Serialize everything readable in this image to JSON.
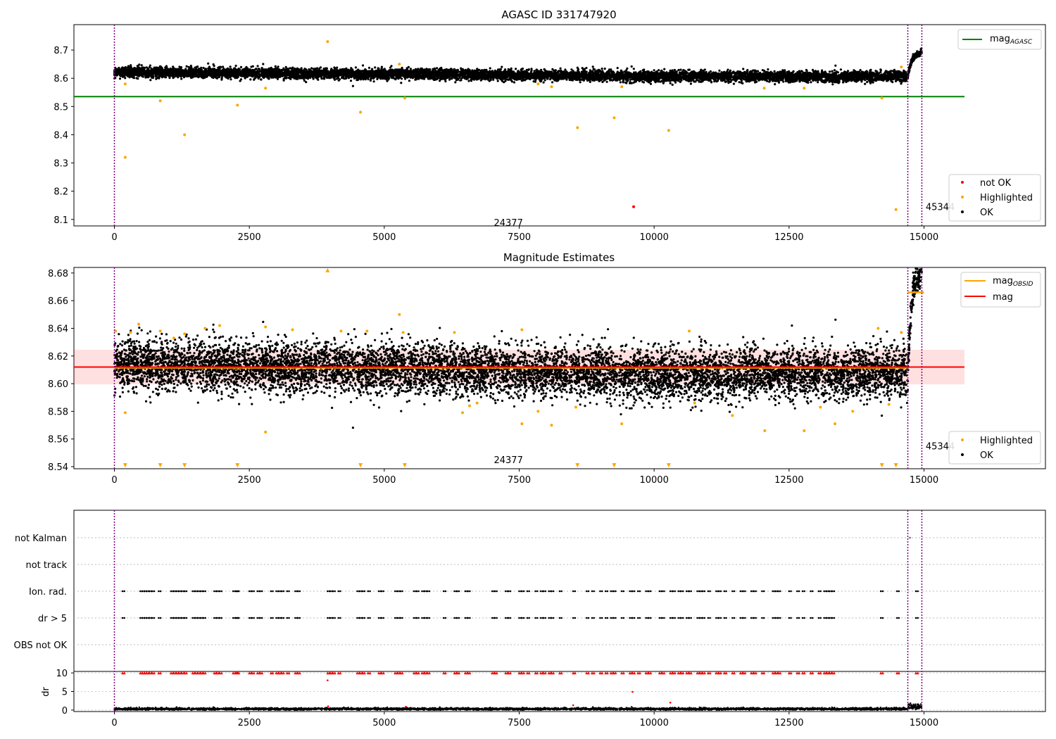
{
  "chart_data": [
    {
      "type": "scatter",
      "title": "AGASC ID 331747920",
      "xlim": [
        -750,
        17250
      ],
      "ylim": [
        8.077,
        8.79
      ],
      "xticks": [
        0,
        2500,
        5000,
        7500,
        10000,
        12500,
        15000
      ],
      "yticks": [
        8.1,
        8.2,
        8.3,
        8.4,
        8.5,
        8.6,
        8.7
      ],
      "reference_lines": [
        {
          "name": "mag_AGASC",
          "label_base": "mag",
          "label_sub": "AGASC",
          "y": 8.535,
          "x_range": [
            -750,
            15750
          ],
          "color": "#008000"
        }
      ],
      "obsid_boundaries": [
        0,
        14700,
        14960
      ],
      "annotations": [
        {
          "text": "24377",
          "x": 7300,
          "y": 8.09
        },
        {
          "text": "45344",
          "x": 15300,
          "y": 8.145
        }
      ],
      "legend_lines_position": "top-right",
      "legend_points_position": "lower-right",
      "legend_points": [
        {
          "name": "not OK",
          "color": "#ff0000"
        },
        {
          "name": "Highlighted",
          "color": "#ffa500"
        },
        {
          "name": "OK",
          "color": "#000000"
        }
      ],
      "series": [
        {
          "name": "OK",
          "color": "#000000",
          "trend": [
            [
              0,
              8.622
            ],
            [
              5000,
              8.615
            ],
            [
              10000,
              8.607
            ],
            [
              14700,
              8.606
            ],
            [
              14750,
              8.65
            ],
            [
              14800,
              8.675
            ],
            [
              14960,
              8.695
            ]
          ],
          "scatter": 0.009
        },
        {
          "name": "Highlighted",
          "color": "#ffa500",
          "points": [
            [
              200,
              8.32
            ],
            [
              200,
              8.58
            ],
            [
              850,
              8.52
            ],
            [
              1300,
              8.4
            ],
            [
              2280,
              8.505
            ],
            [
              2800,
              8.565
            ],
            [
              3950,
              8.73
            ],
            [
              4560,
              8.48
            ],
            [
              5280,
              8.65
            ],
            [
              5380,
              8.53
            ],
            [
              7850,
              8.58
            ],
            [
              8100,
              8.57
            ],
            [
              8580,
              8.425
            ],
            [
              9260,
              8.46
            ],
            [
              9400,
              8.57
            ],
            [
              10270,
              8.415
            ],
            [
              12040,
              8.565
            ],
            [
              12780,
              8.565
            ],
            [
              14220,
              8.53
            ],
            [
              14480,
              8.135
            ],
            [
              14580,
              8.64
            ]
          ]
        },
        {
          "name": "not OK",
          "color": "#ff0000",
          "points": [
            [
              9620,
              8.145
            ]
          ]
        }
      ]
    },
    {
      "type": "scatter",
      "title": "Magnitude Estimates",
      "xlim": [
        -750,
        17250
      ],
      "ylim": [
        8.5385,
        8.684
      ],
      "xticks": [
        0,
        2500,
        5000,
        7500,
        10000,
        12500,
        15000
      ],
      "yticks": [
        8.54,
        8.56,
        8.58,
        8.6,
        8.62,
        8.64,
        8.66,
        8.68
      ],
      "reference_lines": [
        {
          "name": "mag_OBSID",
          "label_base": "mag",
          "label_sub": "OBSID",
          "segments": [
            [
              0,
              14700,
              8.6115
            ],
            [
              14700,
              15000,
              8.666
            ]
          ],
          "color": "#ffa500"
        },
        {
          "name": "mag",
          "label_base": "mag",
          "label_sub": "",
          "y": 8.612,
          "x_range": [
            -750,
            15750
          ],
          "color": "#ff0000",
          "band": [
            8.5995,
            8.6245
          ]
        }
      ],
      "obsid_boundaries": [
        0,
        14700,
        14960
      ],
      "annotations": [
        {
          "text": "24377",
          "x": 7300,
          "y": 8.545
        },
        {
          "text": "45344",
          "x": 15300,
          "y": 8.555
        }
      ],
      "legend_lines_position": "top-right",
      "legend_points_position": "lower-right",
      "legend_points": [
        {
          "name": "Highlighted",
          "color": "#ffa500"
        },
        {
          "name": "OK",
          "color": "#000000"
        }
      ],
      "series": [
        {
          "name": "OK",
          "color": "#000000",
          "trend": [
            [
              0,
              8.614
            ],
            [
              5000,
              8.611
            ],
            [
              10000,
              8.607
            ],
            [
              14700,
              8.608
            ],
            [
              14750,
              8.645
            ],
            [
              14800,
              8.67
            ],
            [
              14960,
              8.683
            ]
          ],
          "scatter": 0.009
        },
        {
          "name": "Highlighted",
          "color": "#ffa500",
          "points": [
            [
              20,
              8.638
            ],
            [
              300,
              8.637
            ],
            [
              450,
              8.643
            ],
            [
              850,
              8.638
            ],
            [
              1100,
              8.633
            ],
            [
              1300,
              8.636
            ],
            [
              1680,
              8.64
            ],
            [
              1950,
              8.642
            ],
            [
              2800,
              8.641
            ],
            [
              3300,
              8.639
            ],
            [
              4200,
              8.638
            ],
            [
              4680,
              8.638
            ],
            [
              5280,
              8.65
            ],
            [
              5350,
              8.637
            ],
            [
              6300,
              8.637
            ],
            [
              7550,
              8.639
            ],
            [
              10650,
              8.638
            ],
            [
              14150,
              8.64
            ],
            [
              14580,
              8.637
            ],
            [
              200,
              8.579
            ],
            [
              2800,
              8.565
            ],
            [
              6450,
              8.579
            ],
            [
              6580,
              8.584
            ],
            [
              6720,
              8.586
            ],
            [
              7550,
              8.571
            ],
            [
              7850,
              8.58
            ],
            [
              8100,
              8.57
            ],
            [
              8550,
              8.583
            ],
            [
              9400,
              8.571
            ],
            [
              10750,
              8.586
            ],
            [
              11450,
              8.577
            ],
            [
              12050,
              8.566
            ],
            [
              12780,
              8.566
            ],
            [
              13080,
              8.583
            ],
            [
              13350,
              8.571
            ],
            [
              13680,
              8.58
            ],
            [
              14350,
              8.585
            ]
          ]
        },
        {
          "name": "Highlighted (clipped low)",
          "color": "#ffa500",
          "marker": "triangle-down",
          "y": 8.541,
          "x": [
            200,
            850,
            1300,
            2280,
            4560,
            5380,
            8580,
            9260,
            10270,
            14220,
            14480
          ]
        },
        {
          "name": "Highlighted (clipped high)",
          "color": "#ffa500",
          "marker": "triangle-up",
          "y": 8.682,
          "x": [
            3950
          ]
        }
      ]
    },
    {
      "type": "scatter",
      "title": "",
      "xlim": [
        -750,
        17250
      ],
      "obsid_boundaries": [
        0,
        14700,
        14960
      ],
      "flag_rows": [
        "not Kalman",
        "not track",
        "Ion. rad.",
        "dr > 5",
        "OBS not OK"
      ],
      "flag_x": [
        150,
        480,
        520,
        560,
        600,
        650,
        700,
        820,
        1050,
        1100,
        1150,
        1200,
        1250,
        1300,
        1450,
        1500,
        1550,
        1600,
        1650,
        1850,
        1900,
        1950,
        2200,
        2250,
        2270,
        2500,
        2550,
        2650,
        2700,
        2900,
        3000,
        3050,
        3100,
        3200,
        3350,
        3400,
        3950,
        4000,
        4050,
        4150,
        4500,
        4550,
        4600,
        4700,
        4900,
        4950,
        5200,
        5250,
        5300,
        5550,
        5600,
        5700,
        5750,
        5800,
        6100,
        6300,
        6350,
        6500,
        6550,
        7000,
        7050,
        7250,
        7300,
        7500,
        7550,
        7650,
        7800,
        7900,
        7950,
        8050,
        8100,
        8250,
        8500,
        8750,
        8850,
        9000,
        9100,
        9200,
        9250,
        9400,
        9550,
        9600,
        9700,
        9850,
        9900,
        10100,
        10150,
        10300,
        10350,
        10450,
        10500,
        10600,
        10650,
        10800,
        10850,
        10900,
        11000,
        11150,
        11200,
        11300,
        11450,
        11600,
        11650,
        11800,
        11850,
        12000,
        12200,
        12250,
        12300,
        12500,
        12650,
        12750,
        12900,
        13050,
        13150,
        13200,
        13250,
        13300,
        14200,
        14500,
        14850
      ],
      "not_kalman_x": [
        14740
      ],
      "dr": {
        "ylabel": "dr",
        "yticks": [
          0,
          5,
          10
        ],
        "ylim": [
          -0.4,
          10.4
        ],
        "baseline": 0.3,
        "outliers": [
          [
            3950,
            8.0
          ],
          [
            3960,
            1.0
          ],
          [
            5400,
            0.9
          ],
          [
            9600,
            4.9
          ],
          [
            10300,
            2.0
          ],
          [
            8500,
            1.3
          ]
        ],
        "clipped_color": "#ff0000"
      }
    }
  ]
}
